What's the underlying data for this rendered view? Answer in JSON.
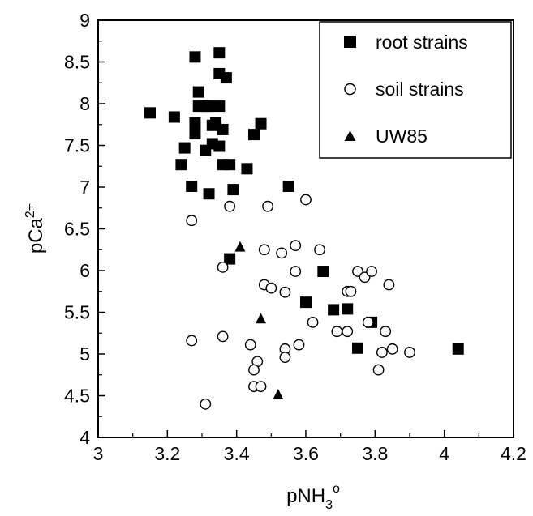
{
  "chart_data": {
    "type": "scatter",
    "title": "",
    "xlabel": "pNH",
    "xlabel_sub": "3",
    "xlabel_sup": "o",
    "ylabel": "pCa",
    "ylabel_sup": "2+",
    "xlim": [
      3.0,
      4.2
    ],
    "ylim": [
      4.0,
      9.0
    ],
    "x_ticks": [
      "3",
      "3.2",
      "3.4",
      "3.6",
      "3.8",
      "4",
      "4.2"
    ],
    "x_tick_values": [
      3.0,
      3.2,
      3.4,
      3.6,
      3.8,
      4.0,
      4.2
    ],
    "y_ticks": [
      "4",
      "4.5",
      "5",
      "5.5",
      "6",
      "6.5",
      "7",
      "7.5",
      "8",
      "8.5",
      "9"
    ],
    "y_tick_values": [
      4.0,
      4.5,
      5.0,
      5.5,
      6.0,
      6.5,
      7.0,
      7.5,
      8.0,
      8.5,
      9.0
    ],
    "grid": false,
    "legend_position": "top-right",
    "series": [
      {
        "name": "root strains",
        "marker": "filled-square",
        "color": "#000000",
        "points": [
          [
            3.15,
            7.89
          ],
          [
            3.22,
            7.84
          ],
          [
            3.25,
            7.47
          ],
          [
            3.24,
            7.27
          ],
          [
            3.27,
            7.01
          ],
          [
            3.28,
            8.56
          ],
          [
            3.29,
            8.14
          ],
          [
            3.29,
            7.97
          ],
          [
            3.28,
            7.77
          ],
          [
            3.28,
            7.64
          ],
          [
            3.31,
            7.97
          ],
          [
            3.32,
            7.97
          ],
          [
            3.31,
            7.44
          ],
          [
            3.33,
            7.74
          ],
          [
            3.33,
            7.52
          ],
          [
            3.32,
            6.92
          ],
          [
            3.35,
            8.61
          ],
          [
            3.35,
            8.36
          ],
          [
            3.35,
            7.97
          ],
          [
            3.34,
            7.77
          ],
          [
            3.35,
            7.49
          ],
          [
            3.36,
            7.69
          ],
          [
            3.36,
            7.27
          ],
          [
            3.37,
            8.31
          ],
          [
            3.38,
            7.27
          ],
          [
            3.39,
            6.97
          ],
          [
            3.43,
            7.22
          ],
          [
            3.45,
            7.63
          ],
          [
            3.47,
            7.76
          ],
          [
            3.55,
            7.01
          ],
          [
            3.38,
            6.14
          ],
          [
            3.6,
            5.62
          ],
          [
            3.65,
            5.99
          ],
          [
            3.68,
            5.53
          ],
          [
            3.72,
            5.54
          ],
          [
            3.75,
            5.07
          ],
          [
            3.79,
            5.38
          ],
          [
            4.04,
            5.06
          ]
        ]
      },
      {
        "name": "soil strains",
        "marker": "open-circle",
        "color": "#000000",
        "points": [
          [
            3.27,
            6.6
          ],
          [
            3.27,
            5.16
          ],
          [
            3.31,
            4.4
          ],
          [
            3.36,
            6.04
          ],
          [
            3.36,
            5.21
          ],
          [
            3.38,
            6.77
          ],
          [
            3.44,
            5.11
          ],
          [
            3.45,
            4.61
          ],
          [
            3.46,
            4.91
          ],
          [
            3.45,
            4.81
          ],
          [
            3.47,
            4.61
          ],
          [
            3.48,
            6.25
          ],
          [
            3.48,
            5.83
          ],
          [
            3.49,
            6.77
          ],
          [
            3.5,
            5.79
          ],
          [
            3.53,
            6.21
          ],
          [
            3.54,
            5.74
          ],
          [
            3.54,
            5.06
          ],
          [
            3.54,
            4.96
          ],
          [
            3.57,
            6.3
          ],
          [
            3.57,
            5.99
          ],
          [
            3.58,
            5.11
          ],
          [
            3.6,
            6.85
          ],
          [
            3.62,
            5.38
          ],
          [
            3.64,
            6.25
          ],
          [
            3.69,
            5.27
          ],
          [
            3.72,
            5.75
          ],
          [
            3.73,
            5.75
          ],
          [
            3.72,
            5.27
          ],
          [
            3.75,
            5.99
          ],
          [
            3.77,
            5.92
          ],
          [
            3.78,
            5.38
          ],
          [
            3.79,
            5.99
          ],
          [
            3.81,
            4.81
          ],
          [
            3.82,
            5.02
          ],
          [
            3.83,
            5.27
          ],
          [
            3.84,
            5.83
          ],
          [
            3.85,
            5.06
          ],
          [
            3.9,
            5.02
          ]
        ]
      },
      {
        "name": "UW85",
        "marker": "filled-triangle",
        "color": "#000000",
        "points": [
          [
            3.41,
            6.28
          ],
          [
            3.47,
            5.42
          ],
          [
            3.52,
            4.51
          ]
        ]
      }
    ]
  }
}
